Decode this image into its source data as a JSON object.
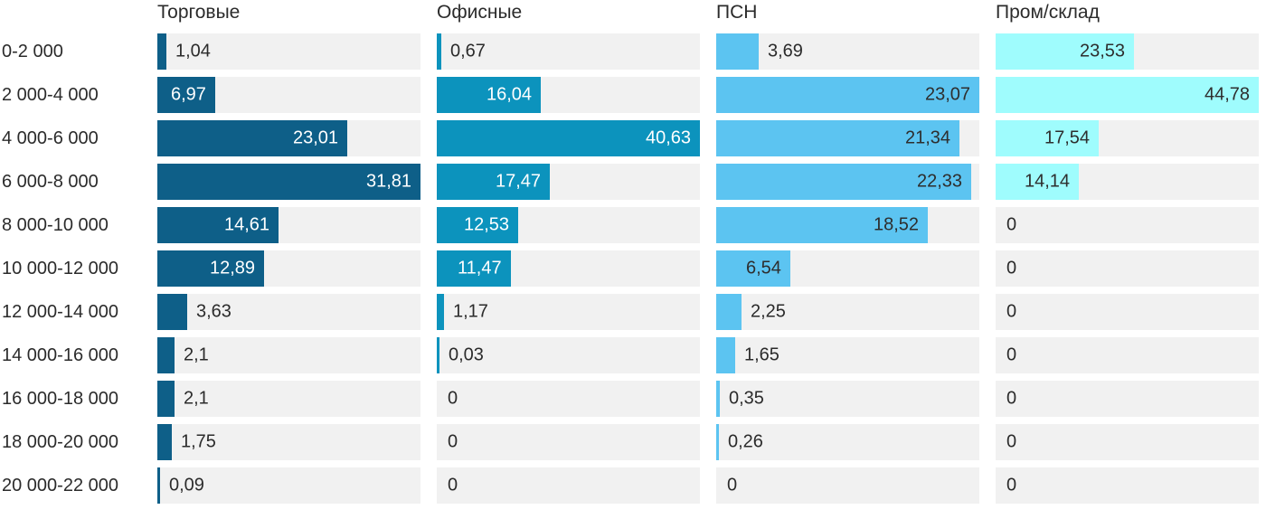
{
  "chart_data": {
    "type": "bar",
    "orientation": "horizontal",
    "title": "",
    "categories": [
      "0-2 000",
      "2 000-4 000",
      "4 000-6 000",
      "6 000-8 000",
      "8 000-10 000",
      "10 000-12 000",
      "12 000-14 000",
      "14 000-16 000",
      "16 000-18 000",
      "18 000-20 000",
      "20 000-22 000"
    ],
    "series": [
      {
        "name": "Торговые",
        "color": "#0e5f88",
        "inside_label_color": "#ffffff",
        "values": [
          1.04,
          6.97,
          23.01,
          31.81,
          14.61,
          12.89,
          3.63,
          2.1,
          2.1,
          1.75,
          0.09
        ],
        "labels": [
          "1,04",
          "6,97",
          "23,01",
          "31,81",
          "14,61",
          "12,89",
          "3,63",
          "2,1",
          "2,1",
          "1,75",
          "0,09"
        ]
      },
      {
        "name": "Офисные",
        "color": "#0c93bd",
        "inside_label_color": "#ffffff",
        "values": [
          0.67,
          16.04,
          40.63,
          17.47,
          12.53,
          11.47,
          1.17,
          0.03,
          0,
          0,
          0
        ],
        "labels": [
          "0,67",
          "16,04",
          "40,63",
          "17,47",
          "12,53",
          "11,47",
          "1,17",
          "0,03",
          "0",
          "0",
          "0"
        ]
      },
      {
        "name": "ПСН",
        "color": "#5cc4f1",
        "inside_label_color": "#2e2e2e",
        "values": [
          3.69,
          23.07,
          21.34,
          22.33,
          18.52,
          6.54,
          2.25,
          1.65,
          0.35,
          0.26,
          0
        ],
        "labels": [
          "3,69",
          "23,07",
          "21,34",
          "22,33",
          "18,52",
          "6,54",
          "2,25",
          "1,65",
          "0,35",
          "0,26",
          "0"
        ]
      },
      {
        "name": "Пром/склад",
        "color": "#9ffcfd",
        "inside_label_color": "#2e2e2e",
        "values": [
          23.53,
          44.78,
          17.54,
          14.14,
          0,
          0,
          0,
          0,
          0,
          0,
          0
        ],
        "labels": [
          "23,53",
          "44,78",
          "17,54",
          "14,14",
          "0",
          "0",
          "0",
          "0",
          "0",
          "0",
          "0"
        ]
      }
    ],
    "scale": "each column scaled independently, column max = full track width",
    "track_color": "#f1f1f1",
    "text_color": "#2b2b2b",
    "legend_position": "column headers on top",
    "grid": false
  }
}
